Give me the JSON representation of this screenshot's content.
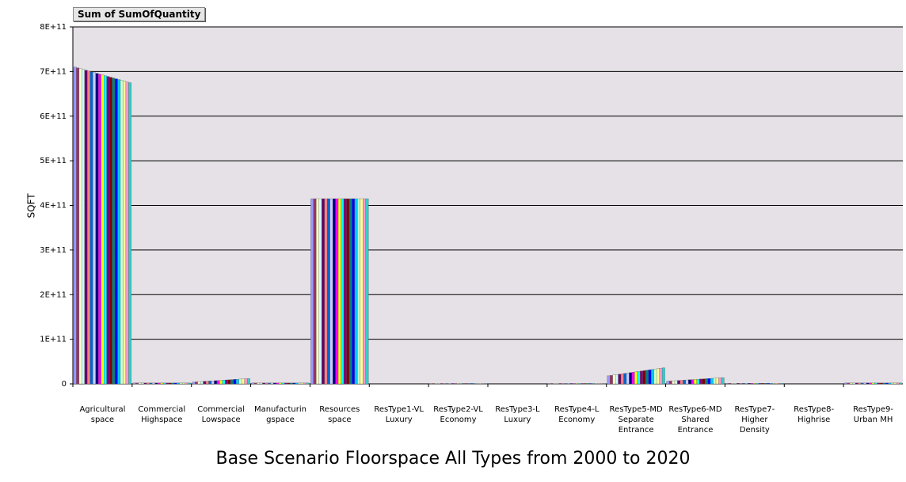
{
  "field_button": "Sum of SumOfQuantity",
  "chart_data": {
    "type": "bar",
    "title": "Base Scenario Floorspace All Types from 2000 to 2020",
    "y_label": "SQFT",
    "categories": [
      "Agricultural space",
      "Commercial Highspace",
      "Commercial Lowspace",
      "Manufacturingspace",
      "Resources space",
      "ResType1-VL Luxury",
      "ResType2-VL Economy",
      "ResType3-L Luxury",
      "ResType4-L Economy",
      "ResType5-MD Separate Entrance",
      "ResType6-MD Shared Entrance",
      "ResType7-Higher Density",
      "ResType8-Highrise",
      "ResType9-Urban MH"
    ],
    "ylim": [
      0,
      800000000000.0
    ],
    "yticks": [
      0,
      {
        "value": 100000000000.0,
        "label": "1E+11"
      },
      {
        "value": 200000000000.0,
        "label": "2E+11"
      },
      {
        "value": 300000000000.0,
        "label": "3E+11"
      },
      {
        "value": 400000000000.0,
        "label": "4E+11"
      },
      {
        "value": 500000000000.0,
        "label": "5E+11"
      },
      {
        "value": 600000000000.0,
        "label": "6E+11"
      },
      {
        "value": 700000000000.0,
        "label": "7E+11"
      },
      {
        "value": 800000000000.0,
        "label": "8E+11"
      }
    ],
    "grid": true,
    "series": [
      {
        "color": "#9999ff",
        "values": [
          710000000000.0,
          2000000000.0,
          4000000000.0,
          2000000000.0,
          415000000000.0,
          0,
          1000000000.0,
          0,
          1000000000.0,
          18000000000.0,
          6000000000.0,
          1500000000.0,
          0,
          2000000000.0
        ]
      },
      {
        "color": "#993366",
        "values": [
          708250000000.0,
          2000000000.0,
          4400000000.0,
          2000000000.0,
          415000000000.0,
          0,
          1000000000.0,
          0,
          1000000000.0,
          18900000000.0,
          6400000000.0,
          1500000000.0,
          0,
          2000000000.0
        ]
      },
      {
        "color": "#ffffcc",
        "values": [
          706500000000.0,
          2000000000.0,
          4800000000.0,
          2000000000.0,
          415000000000.0,
          0,
          1000000000.0,
          0,
          1000000000.0,
          19800000000.0,
          6800000000.0,
          1500000000.0,
          0,
          2000000000.0
        ]
      },
      {
        "color": "#ccffff",
        "values": [
          704750000000.0,
          2000000000.0,
          5200000000.0,
          2000000000.0,
          415000000000.0,
          0,
          1000000000.0,
          0,
          1000000000.0,
          20700000000.0,
          7200000000.0,
          1500000000.0,
          0,
          2000000000.0
        ]
      },
      {
        "color": "#660066",
        "values": [
          703000000000.0,
          2000000000.0,
          5600000000.0,
          2000000000.0,
          415000000000.0,
          0,
          1000000000.0,
          0,
          1000000000.0,
          21600000000.0,
          7600000000.0,
          1500000000.0,
          0,
          2000000000.0
        ]
      },
      {
        "color": "#ff8080",
        "values": [
          701250000000.0,
          2000000000.0,
          6000000000.0,
          2000000000.0,
          415000000000.0,
          0,
          1000000000.0,
          0,
          1000000000.0,
          22500000000.0,
          8000000000.0,
          1500000000.0,
          0,
          2000000000.0
        ]
      },
      {
        "color": "#0066cc",
        "values": [
          699500000000.0,
          2000000000.0,
          6400000000.0,
          2000000000.0,
          415000000000.0,
          0,
          1000000000.0,
          0,
          1000000000.0,
          23400000000.0,
          8400000000.0,
          1500000000.0,
          0,
          2000000000.0
        ]
      },
      {
        "color": "#ccccff",
        "values": [
          697750000000.0,
          2000000000.0,
          6800000000.0,
          2000000000.0,
          415000000000.0,
          0,
          1000000000.0,
          0,
          1000000000.0,
          24300000000.0,
          8800000000.0,
          1500000000.0,
          0,
          2000000000.0
        ]
      },
      {
        "color": "#000080",
        "values": [
          696000000000.0,
          2000000000.0,
          7200000000.0,
          2000000000.0,
          415000000000.0,
          0,
          1000000000.0,
          0,
          1000000000.0,
          25200000000.0,
          9200000000.0,
          1500000000.0,
          0,
          2000000000.0
        ]
      },
      {
        "color": "#ff00ff",
        "values": [
          694250000000.0,
          2000000000.0,
          7600000000.0,
          2000000000.0,
          415000000000.0,
          0,
          1000000000.0,
          0,
          1000000000.0,
          26100000000.0,
          9600000000.0,
          1500000000.0,
          0,
          2000000000.0
        ]
      },
      {
        "color": "#ffff00",
        "values": [
          692500000000.0,
          2000000000.0,
          8000000000.0,
          2000000000.0,
          415000000000.0,
          0,
          1000000000.0,
          0,
          1000000000.0,
          27000000000.0,
          10000000000.0,
          1500000000.0,
          0,
          2000000000.0
        ]
      },
      {
        "color": "#00ffff",
        "values": [
          690750000000.0,
          2000000000.0,
          8400000000.0,
          2000000000.0,
          415000000000.0,
          0,
          1000000000.0,
          0,
          1000000000.0,
          27900000000.0,
          10400000000.0,
          1500000000.0,
          0,
          2000000000.0
        ]
      },
      {
        "color": "#800080",
        "values": [
          689000000000.0,
          2000000000.0,
          8800000000.0,
          2000000000.0,
          415000000000.0,
          0,
          1000000000.0,
          0,
          1000000000.0,
          28800000000.0,
          10800000000.0,
          1500000000.0,
          0,
          2000000000.0
        ]
      },
      {
        "color": "#800000",
        "values": [
          687250000000.0,
          2000000000.0,
          9200000000.0,
          2000000000.0,
          415000000000.0,
          0,
          1000000000.0,
          0,
          1000000000.0,
          29700000000.0,
          11200000000.0,
          1500000000.0,
          0,
          2000000000.0
        ]
      },
      {
        "color": "#008080",
        "values": [
          685500000000.0,
          2000000000.0,
          9600000000.0,
          2000000000.0,
          415000000000.0,
          0,
          1000000000.0,
          0,
          1000000000.0,
          30600000000.0,
          11600000000.0,
          1500000000.0,
          0,
          2000000000.0
        ]
      },
      {
        "color": "#0000ff",
        "values": [
          683750000000.0,
          2000000000.0,
          10000000000.0,
          2000000000.0,
          415000000000.0,
          0,
          1000000000.0,
          0,
          1000000000.0,
          31500000000.0,
          12000000000.0,
          1500000000.0,
          0,
          2000000000.0
        ]
      },
      {
        "color": "#00ccff",
        "values": [
          682000000000.0,
          2000000000.0,
          10400000000.0,
          2000000000.0,
          415000000000.0,
          0,
          1000000000.0,
          0,
          1000000000.0,
          32400000000.0,
          12400000000.0,
          1500000000.0,
          0,
          2000000000.0
        ]
      },
      {
        "color": "#ccffcc",
        "values": [
          680250000000.0,
          2000000000.0,
          10800000000.0,
          2000000000.0,
          415000000000.0,
          0,
          1000000000.0,
          0,
          1000000000.0,
          33300000000.0,
          12800000000.0,
          1500000000.0,
          0,
          2000000000.0
        ]
      },
      {
        "color": "#ffff99",
        "values": [
          678500000000.0,
          2000000000.0,
          11200000000.0,
          2000000000.0,
          415000000000.0,
          0,
          1000000000.0,
          0,
          1000000000.0,
          34200000000.0,
          13200000000.0,
          1500000000.0,
          0,
          2000000000.0
        ]
      },
      {
        "color": "#ff99cc",
        "values": [
          676750000000.0,
          2000000000.0,
          11600000000.0,
          2000000000.0,
          415000000000.0,
          0,
          1000000000.0,
          0,
          1000000000.0,
          35100000000.0,
          13600000000.0,
          1500000000.0,
          0,
          2000000000.0
        ]
      },
      {
        "color": "#33cccc",
        "values": [
          675000000000.0,
          2000000000.0,
          12000000000.0,
          2000000000.0,
          415000000000.0,
          0,
          1000000000.0,
          0,
          1000000000.0,
          36000000000.0,
          14000000000.0,
          1500000000.0,
          0,
          2000000000.0
        ]
      }
    ]
  }
}
